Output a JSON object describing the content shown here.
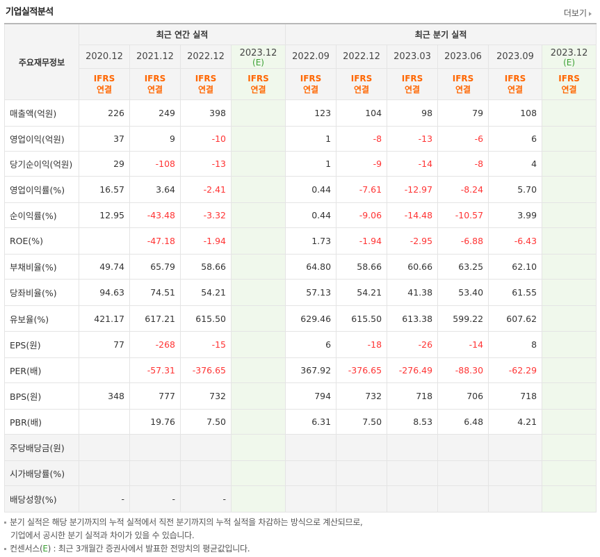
{
  "header": {
    "title": "기업실적분석",
    "more_label": "더보기"
  },
  "table": {
    "corner_label": "주요재무정보",
    "annual_label": "최근 연간 실적",
    "quarter_label": "최근 분기 실적",
    "ifrs_top": "IFRS",
    "ifrs_bottom": "연결",
    "est_mark": "(E)",
    "annual_periods": [
      "2020.12",
      "2021.12",
      "2022.12",
      "2023.12"
    ],
    "quarter_periods": [
      "2022.09",
      "2022.12",
      "2023.03",
      "2023.06",
      "2023.09",
      "2023.12"
    ],
    "rows": [
      {
        "label": "매출액(억원)",
        "values": [
          "226",
          "249",
          "398",
          "",
          "123",
          "104",
          "98",
          "79",
          "108",
          ""
        ]
      },
      {
        "label": "영업이익(억원)",
        "values": [
          "37",
          "9",
          "-10",
          "",
          "1",
          "-8",
          "-13",
          "-6",
          "6",
          ""
        ]
      },
      {
        "label": "당기순이익(억원)",
        "values": [
          "29",
          "-108",
          "-13",
          "",
          "1",
          "-9",
          "-14",
          "-8",
          "4",
          ""
        ]
      },
      {
        "label": "영업이익률(%)",
        "values": [
          "16.57",
          "3.64",
          "-2.41",
          "",
          "0.44",
          "-7.61",
          "-12.97",
          "-8.24",
          "5.70",
          ""
        ]
      },
      {
        "label": "순이익률(%)",
        "values": [
          "12.95",
          "-43.48",
          "-3.32",
          "",
          "0.44",
          "-9.06",
          "-14.48",
          "-10.57",
          "3.99",
          ""
        ]
      },
      {
        "label": "ROE(%)",
        "values": [
          "",
          "-47.18",
          "-1.94",
          "",
          "1.73",
          "-1.94",
          "-2.95",
          "-6.88",
          "-6.43",
          ""
        ]
      },
      {
        "label": "부채비율(%)",
        "values": [
          "49.74",
          "65.79",
          "58.66",
          "",
          "64.80",
          "58.66",
          "60.66",
          "63.25",
          "62.10",
          ""
        ]
      },
      {
        "label": "당좌비율(%)",
        "values": [
          "94.63",
          "74.51",
          "54.21",
          "",
          "57.13",
          "54.21",
          "41.38",
          "53.40",
          "61.55",
          ""
        ]
      },
      {
        "label": "유보율(%)",
        "values": [
          "421.17",
          "617.21",
          "615.50",
          "",
          "629.46",
          "615.50",
          "613.38",
          "599.22",
          "607.62",
          ""
        ]
      },
      {
        "label": "EPS(원)",
        "values": [
          "77",
          "-268",
          "-15",
          "",
          "6",
          "-18",
          "-26",
          "-14",
          "8",
          ""
        ]
      },
      {
        "label": "PER(배)",
        "values": [
          "",
          "-57.31",
          "-376.65",
          "",
          "367.92",
          "-376.65",
          "-276.49",
          "-88.30",
          "-62.29",
          ""
        ]
      },
      {
        "label": "BPS(원)",
        "values": [
          "348",
          "777",
          "732",
          "",
          "794",
          "732",
          "718",
          "706",
          "718",
          ""
        ]
      },
      {
        "label": "PBR(배)",
        "values": [
          "",
          "19.76",
          "7.50",
          "",
          "6.31",
          "7.50",
          "8.53",
          "6.48",
          "4.21",
          ""
        ]
      },
      {
        "label": "주당배당금(원)",
        "values": [
          "",
          "",
          "",
          "",
          "",
          "",
          "",
          "",
          "",
          ""
        ]
      },
      {
        "label": "시가배당률(%)",
        "values": [
          "",
          "",
          "",
          "",
          "",
          "",
          "",
          "",
          "",
          ""
        ]
      },
      {
        "label": "배당성향(%)",
        "values": [
          "-",
          "-",
          "-",
          "",
          "",
          "",
          "",
          "",
          "",
          ""
        ]
      }
    ]
  },
  "notes": {
    "line1": "분기 실적은 해당 분기까지의 누적 실적에서 직전 분기까지의 누적 실적을 차감하는 방식으로 계산되므로,",
    "line2": "기업에서 공시한 분기 실적과 차이가 있을 수 있습니다.",
    "line3_a": "컨센서스(",
    "line3_e": "E",
    "line3_b": ") : 최근 3개월간 증권사에서 발표한 전망치의 평균값입니다."
  },
  "colors": {
    "negative": "#ff3333",
    "ifrs": "#ff6600",
    "estimate_bg": "#f0f8ec",
    "estimate_mark": "#3aa033"
  }
}
